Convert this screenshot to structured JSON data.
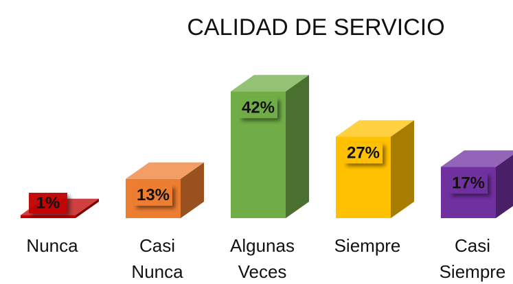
{
  "chart_data": {
    "type": "bar3d",
    "title": "CALIDAD DE SERVICIO",
    "categories": [
      "Nunca",
      "Casi Nunca",
      "Algunas Veces",
      "Siempre",
      "Casi Siempre"
    ],
    "values": [
      1,
      13,
      42,
      27,
      17
    ],
    "value_labels": [
      "1%",
      "13%",
      "42%",
      "27%",
      "17%"
    ],
    "colors": [
      "#c00000",
      "#ed7d31",
      "#70ad47",
      "#ffc000",
      "#7030a0"
    ]
  }
}
